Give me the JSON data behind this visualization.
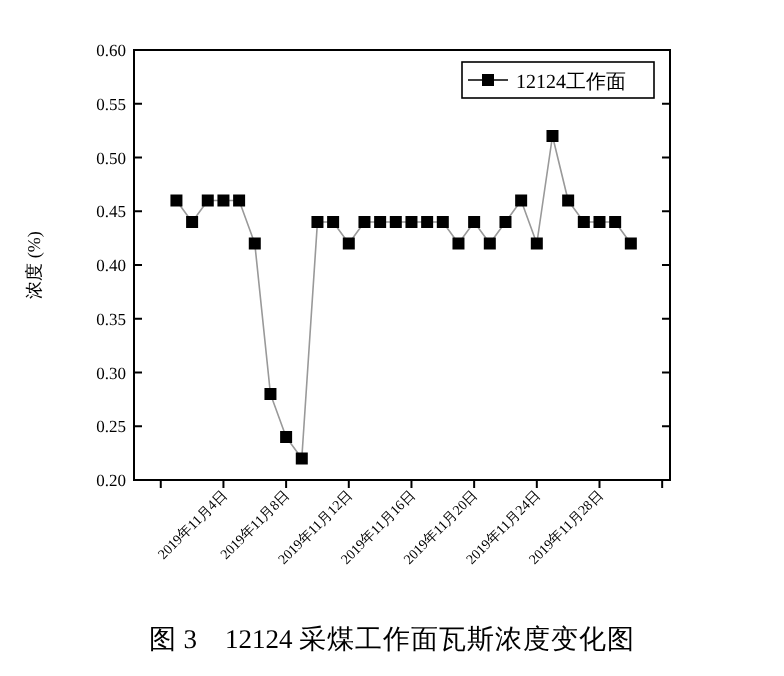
{
  "chart_data": {
    "type": "line",
    "title": "图 3　12124 采煤工作面瓦斯浓度变化图",
    "ylabel": "浓度 (%)",
    "x": [
      "2019-11-01",
      "2019-11-02",
      "2019-11-03",
      "2019-11-04",
      "2019-11-05",
      "2019-11-06",
      "2019-11-07",
      "2019-11-08",
      "2019-11-09",
      "2019-11-10",
      "2019-11-11",
      "2019-11-12",
      "2019-11-13",
      "2019-11-14",
      "2019-11-15",
      "2019-11-16",
      "2019-11-17",
      "2019-11-18",
      "2019-11-19",
      "2019-11-20",
      "2019-11-21",
      "2019-11-22",
      "2019-11-23",
      "2019-11-24",
      "2019-11-25",
      "2019-11-26",
      "2019-11-27",
      "2019-11-28",
      "2019-11-29",
      "2019-11-30"
    ],
    "series": [
      {
        "name": "12124工作面",
        "color": "#000000",
        "values": [
          0.46,
          0.44,
          0.46,
          0.46,
          0.46,
          0.42,
          0.28,
          0.24,
          0.22,
          0.44,
          0.44,
          0.42,
          0.44,
          0.44,
          0.44,
          0.44,
          0.44,
          0.44,
          0.42,
          0.44,
          0.42,
          0.44,
          0.46,
          0.42,
          0.52,
          0.46,
          0.44,
          0.44,
          0.44,
          0.42
        ]
      }
    ],
    "xlim": [
      "2019-10-29T07:00",
      "2019-12-02T12:00"
    ],
    "xticks": [
      {
        "value": "2019-10-31",
        "label": null
      },
      {
        "value": "2019-11-04",
        "label": "2019年11月4日"
      },
      {
        "value": "2019-11-08",
        "label": "2019年11月8日"
      },
      {
        "value": "2019-11-12",
        "label": "2019年11月12日"
      },
      {
        "value": "2019-11-16",
        "label": "2019年11月16日"
      },
      {
        "value": "2019-11-20",
        "label": "2019年11月20日"
      },
      {
        "value": "2019-11-24",
        "label": "2019年11月24日"
      },
      {
        "value": "2019-11-28",
        "label": "2019年11月28日"
      },
      {
        "value": "2019-12-02",
        "label": null
      }
    ],
    "ylim": [
      0.2,
      0.6
    ],
    "yticks": [
      {
        "value": 0.2,
        "label": "0.20"
      },
      {
        "value": 0.25,
        "label": "0.25"
      },
      {
        "value": 0.3,
        "label": "0.30"
      },
      {
        "value": 0.35,
        "label": "0.35"
      },
      {
        "value": 0.4,
        "label": "0.40"
      },
      {
        "value": 0.45,
        "label": "0.45"
      },
      {
        "value": 0.5,
        "label": "0.50"
      },
      {
        "value": 0.55,
        "label": "0.55"
      },
      {
        "value": 0.6,
        "label": "0.60"
      }
    ],
    "marker": "square",
    "line_style": "solid",
    "legend": "top right",
    "grid": false
  }
}
